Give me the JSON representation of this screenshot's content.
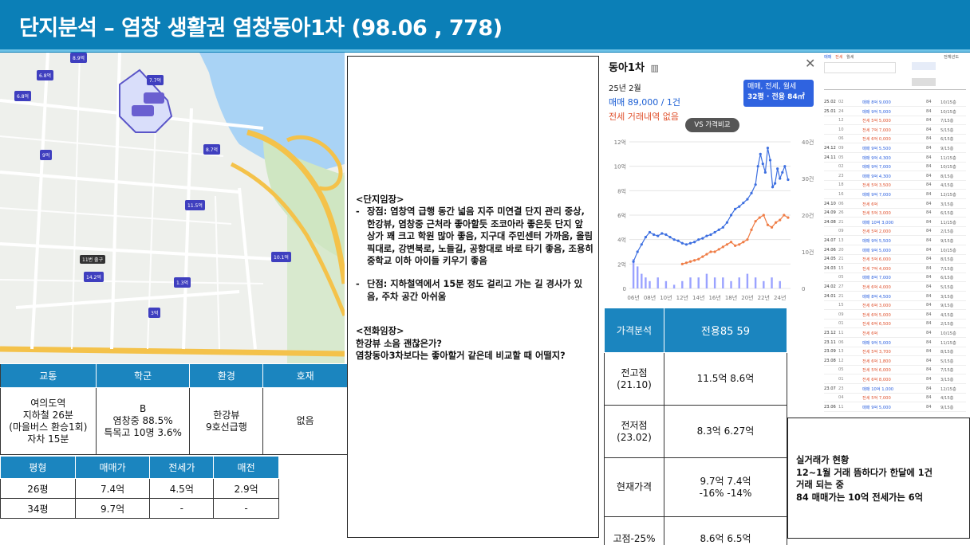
{
  "header": {
    "title": "단지분석 – 염창 생활권 염창동아1차 (98.06 , 778)"
  },
  "map": {
    "river_color": "#a9d3f5",
    "road_color": "#f4c24a",
    "park_color": "#cfe6c2",
    "markers": [
      "8.9억",
      "6.8억",
      "6.8억",
      "7.7억",
      "8.7억",
      "9억",
      "11.5억",
      "10.1억",
      "14.2억",
      "1.3억",
      "3억"
    ],
    "label_sign": "11번 출구"
  },
  "info_table": {
    "headers": [
      "교통",
      "학군",
      "환경",
      "호재"
    ],
    "transport": [
      "여의도역",
      "지하철 26분",
      "(마을버스 환승1회)",
      "자차 15분"
    ],
    "school": [
      "B",
      "염창중 88.5%",
      "특목고 10명 3.6%"
    ],
    "environment": [
      "한강뷰",
      "9호선급행"
    ],
    "development": "없음"
  },
  "size_table": {
    "headers": [
      "평형",
      "매매가",
      "전세가",
      "매전"
    ],
    "rows": [
      [
        "26평",
        "7.4억",
        "4.5억",
        "2.9억"
      ],
      [
        "34평",
        "9.7억",
        "-",
        "-"
      ]
    ]
  },
  "notes": {
    "site_heading": "<단지임장>",
    "pros": "장점: 염창역 급행 동간 넓음 지주 미연결 단지 관리 중상, 한강뷰, 염창중 근처라 좋아할듯 조코아라 좋은듯 단지 앞 상가 꽤 크고 학원 많아 좋음, 지구대 주민센터 가까움, 올림픽대로, 강변북로, 노들길, 공항대로 바로 타기 좋음, 조용히 중학교 이하 아이들 키우기 좋음",
    "cons": "단점: 지하철역에서 15분 정도 걸리고 가는 길 경사가 있음, 주차 공간 아쉬움",
    "phone_heading": "<전화임장>",
    "phone_q": "한강뷰 소음 괜찮은가?",
    "phone_a": "염창동아3차보다는 좋아할거 같은데 비교할 때 어떨지?"
  },
  "panel": {
    "title": "동아1차",
    "map_icon": "book-map-icon",
    "close_icon": "close-icon",
    "month": "25년 2월",
    "sale": "매매 89,000 / 1건",
    "jeonse": "전세 거래내역 없음",
    "filter_line1": "매매, 전세, 월세",
    "filter_line2": "32평 · 전용 84㎡",
    "vs_button": "VS 가격비교"
  },
  "chart_data": {
    "type": "line",
    "x_ticks": [
      "06년",
      "08년",
      "10년",
      "12년",
      "14년",
      "16년",
      "18년",
      "20년",
      "22년",
      "24년"
    ],
    "y_left_ticks": [
      "0",
      "2억",
      "4억",
      "6억",
      "8억",
      "10억",
      "12억"
    ],
    "y_right_ticks": [
      "0",
      "10건",
      "20건",
      "30건",
      "40건"
    ],
    "ylim_left": [
      0,
      12
    ],
    "ylim_right": [
      0,
      40
    ],
    "series": [
      {
        "color": "#3d6fe0",
        "x": [
          2006,
          2006.5,
          2007,
          2007.5,
          2008,
          2008.5,
          2009,
          2009.5,
          2010,
          2010.5,
          2011,
          2011.5,
          2012,
          2012.5,
          2013,
          2013.5,
          2014,
          2014.5,
          2015,
          2015.5,
          2016,
          2016.5,
          2017,
          2017.5,
          2018,
          2018.5,
          2019,
          2019.5,
          2020,
          2020.5,
          2021,
          2021.3,
          2021.6,
          2021.9,
          2022.2,
          2022.5,
          2022.8,
          2023.1,
          2023.4,
          2023.7,
          2024,
          2024.3,
          2024.6,
          2025
        ],
        "values": [
          2.2,
          3.0,
          3.6,
          4.2,
          4.6,
          4.4,
          4.3,
          4.5,
          4.4,
          4.2,
          4.0,
          3.9,
          3.7,
          3.6,
          3.7,
          3.8,
          4.0,
          4.1,
          4.3,
          4.4,
          4.6,
          4.8,
          5.0,
          5.4,
          6.0,
          6.5,
          6.7,
          7.0,
          7.3,
          7.8,
          8.5,
          10.0,
          11.0,
          10.2,
          9.5,
          11.5,
          10.5,
          8.3,
          8.6,
          9.8,
          9.0,
          9.5,
          10.0,
          8.9
        ]
      },
      {
        "color": "#ef7c45",
        "x": [
          2012,
          2012.5,
          2013,
          2013.5,
          2014,
          2014.5,
          2015,
          2015.5,
          2016,
          2016.5,
          2017,
          2017.5,
          2018,
          2018.5,
          2019,
          2019.5,
          2020,
          2020.5,
          2021,
          2021.5,
          2022,
          2022.5,
          2023,
          2023.5,
          2024,
          2024.5,
          2025
        ],
        "values": [
          2.0,
          2.1,
          2.2,
          2.3,
          2.4,
          2.6,
          2.8,
          3.0,
          3.0,
          3.2,
          3.4,
          3.6,
          3.8,
          3.5,
          3.6,
          3.8,
          4.0,
          4.8,
          5.5,
          5.8,
          6.0,
          5.2,
          5.0,
          5.4,
          5.6,
          6.0,
          5.8
        ]
      }
    ],
    "volume_bars": {
      "color": "#9aa2ff",
      "x": [
        2006,
        2006.5,
        2007,
        2007.5,
        2008,
        2009,
        2010,
        2011,
        2012,
        2013,
        2014,
        2015,
        2016,
        2017,
        2018,
        2019,
        2020,
        2021,
        2022,
        2023,
        2024
      ],
      "values": [
        8,
        6,
        4,
        3,
        2,
        3,
        2,
        1,
        2,
        3,
        3,
        4,
        3,
        3,
        2,
        3,
        4,
        3,
        2,
        3,
        2
      ]
    }
  },
  "analysis_table": {
    "headers": [
      "가격분석",
      "전용85 59"
    ],
    "rows": [
      {
        "label": [
          "전고점",
          "(21.10)"
        ],
        "value": [
          "11.5억 8.6억"
        ]
      },
      {
        "label": [
          "전저점",
          "(23.02)"
        ],
        "value": [
          "8.3억 6.27억"
        ]
      },
      {
        "label": [
          "현재가격"
        ],
        "value": [
          "9.7억 7.4억",
          "-16% -14%"
        ]
      },
      {
        "label": [
          "고점-25%"
        ],
        "value": [
          "8.6억 6.5억"
        ]
      }
    ]
  },
  "tx_list": {
    "tabs": [
      "매매",
      "전세",
      "월세"
    ],
    "header_right": "전체년도",
    "rows": [
      [
        "25.02",
        "02",
        "매매 8억 9,000",
        "84",
        "10/15층"
      ],
      [
        "25.01",
        "24",
        "매매 9억 5,000",
        "84",
        "10/15층"
      ],
      [
        "",
        "12",
        "전세 5억 5,000",
        "84",
        "7/15층"
      ],
      [
        "",
        "10",
        "전세 7억 7,000",
        "84",
        "5/15층"
      ],
      [
        "",
        "06",
        "전세 6억 0,000",
        "84",
        "6/15층"
      ],
      [
        "24.12",
        "09",
        "매매 9억 5,500",
        "84",
        "9/15층"
      ],
      [
        "24.11",
        "05",
        "매매 9억 4,300",
        "84",
        "11/15층"
      ],
      [
        "",
        "02",
        "매매 9억 7,000",
        "84",
        "10/15층"
      ],
      [
        "",
        "23",
        "매매 9억 4,300",
        "84",
        "8/15층"
      ],
      [
        "",
        "18",
        "전세 5억 3,500",
        "84",
        "4/15층"
      ],
      [
        "",
        "16",
        "매매 9억 7,000",
        "84",
        "12/15층"
      ],
      [
        "24.10",
        "06",
        "전세 6억",
        "84",
        "3/15층"
      ],
      [
        "24.09",
        "26",
        "전세 5억 3,000",
        "84",
        "6/15층"
      ],
      [
        "24.08",
        "21",
        "매매 10억 3,000",
        "84",
        "11/15층"
      ],
      [
        "",
        "09",
        "전세 5억 2,000",
        "84",
        "2/15층"
      ],
      [
        "24.07",
        "13",
        "매매 9억 5,500",
        "84",
        "9/15층"
      ],
      [
        "24.06",
        "20",
        "매매 9억 5,000",
        "84",
        "10/15층"
      ],
      [
        "24.05",
        "21",
        "전세 5억 6,000",
        "84",
        "8/15층"
      ],
      [
        "24.03",
        "15",
        "전세 7억 4,000",
        "84",
        "7/15층"
      ],
      [
        "",
        "05",
        "매매 8억 7,000",
        "84",
        "6/15층"
      ],
      [
        "24.02",
        "27",
        "전세 6억 4,000",
        "84",
        "5/15층"
      ],
      [
        "24.01",
        "21",
        "매매 8억 4,500",
        "84",
        "3/15층"
      ],
      [
        "",
        "15",
        "전세 6억 3,000",
        "84",
        "9/15층"
      ],
      [
        "",
        "09",
        "전세 6억 5,000",
        "84",
        "4/15층"
      ],
      [
        "",
        "01",
        "전세 6억 6,500",
        "84",
        "2/15층"
      ],
      [
        "23.12",
        "11",
        "전세 6억",
        "84",
        "10/15층"
      ],
      [
        "23.11",
        "06",
        "매매 9억 5,000",
        "84",
        "11/15층"
      ],
      [
        "23.09",
        "13",
        "전세 5억 3,700",
        "84",
        "8/15층"
      ],
      [
        "23.08",
        "12",
        "전세 6억 1,800",
        "84",
        "5/15층"
      ],
      [
        "",
        "05",
        "전세 5억 6,000",
        "84",
        "7/15층"
      ],
      [
        "",
        "01",
        "전세 6억 8,000",
        "84",
        "3/15층"
      ],
      [
        "23.07",
        "23",
        "매매 10억 1,000",
        "84",
        "12/15층"
      ],
      [
        "",
        "04",
        "전세 5억 7,000",
        "84",
        "4/15층"
      ],
      [
        "23.06",
        "11",
        "매매 9억 5,000",
        "84",
        "9/15층"
      ]
    ]
  },
  "real_note": {
    "line1": "실거래가 현황",
    "line2": "12~1월 거래 뜸하다가 한달에 1건",
    "line3": "거래 되는 중",
    "line4": "84 매매가는 10억 전세가는 6억"
  }
}
